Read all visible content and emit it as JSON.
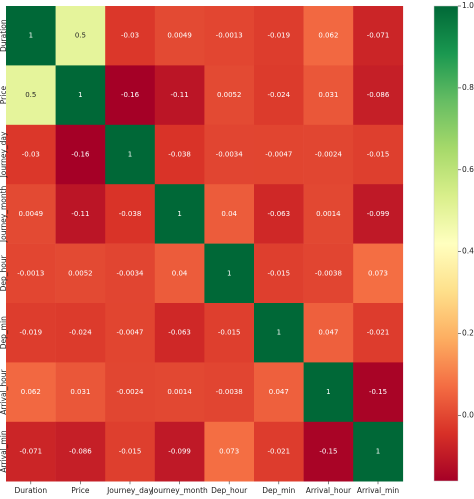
{
  "chart_data": {
    "type": "heatmap",
    "title": "",
    "xlabel": "",
    "ylabel": "",
    "colormap": "RdYlGn",
    "value_range": [
      -0.16,
      1.0
    ],
    "colorbar_ticks": [
      0.0,
      0.2,
      0.4,
      0.6,
      0.8,
      1.0
    ],
    "x_labels": [
      "Duration",
      "Price",
      "Journey_day",
      "Journey_month",
      "Dep_hour",
      "Dep_min",
      "Arrival_hour",
      "Arrival_min"
    ],
    "y_labels": [
      "Duration",
      "Price",
      "Journey_day",
      "Journey_month",
      "Dep_hour",
      "Dep_min",
      "Arrival_hour",
      "Arrival_min"
    ],
    "values": [
      [
        1,
        0.5,
        -0.03,
        0.0049,
        -0.0013,
        -0.019,
        0.062,
        -0.071
      ],
      [
        0.5,
        1,
        -0.16,
        -0.11,
        0.0052,
        -0.024,
        0.031,
        -0.086
      ],
      [
        -0.03,
        -0.16,
        1,
        -0.038,
        -0.0034,
        -0.0047,
        -0.0024,
        -0.015
      ],
      [
        0.0049,
        -0.11,
        -0.038,
        1,
        0.04,
        -0.063,
        0.0014,
        -0.099
      ],
      [
        -0.0013,
        0.0052,
        -0.0034,
        0.04,
        1,
        -0.015,
        -0.0038,
        0.073
      ],
      [
        -0.019,
        -0.024,
        -0.0047,
        -0.063,
        -0.015,
        1,
        0.047,
        -0.021
      ],
      [
        0.062,
        0.031,
        -0.0024,
        0.0014,
        -0.0038,
        0.047,
        1,
        -0.15
      ],
      [
        -0.071,
        -0.086,
        -0.015,
        -0.099,
        0.073,
        -0.021,
        -0.15,
        1
      ]
    ]
  }
}
